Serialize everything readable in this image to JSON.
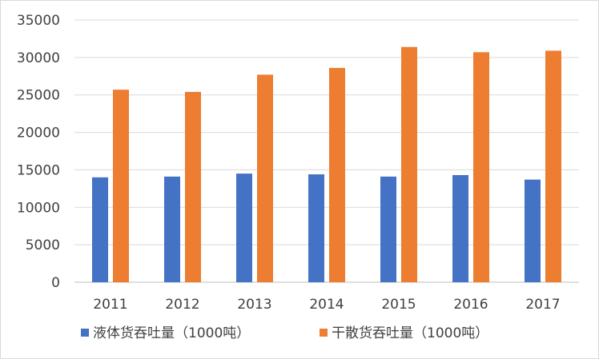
{
  "chart_data": {
    "type": "bar",
    "categories": [
      "2011",
      "2012",
      "2013",
      "2014",
      "2015",
      "2016",
      "2017"
    ],
    "series": [
      {
        "name": "液体货吞吐量（1000吨）",
        "color": "#4472c4",
        "values": [
          14000,
          14100,
          14500,
          14400,
          14100,
          14300,
          13700
        ]
      },
      {
        "name": "干散货吞吐量（1000吨）",
        "color": "#ed7d31",
        "values": [
          25700,
          25400,
          27700,
          28600,
          31400,
          30700,
          30900
        ]
      }
    ],
    "yticks": [
      "0",
      "5000",
      "10000",
      "15000",
      "20000",
      "25000",
      "30000",
      "35000"
    ],
    "ylim": [
      0,
      35000
    ],
    "grid": true,
    "legend_position": "bottom",
    "title": "",
    "xlabel": "",
    "ylabel": ""
  }
}
